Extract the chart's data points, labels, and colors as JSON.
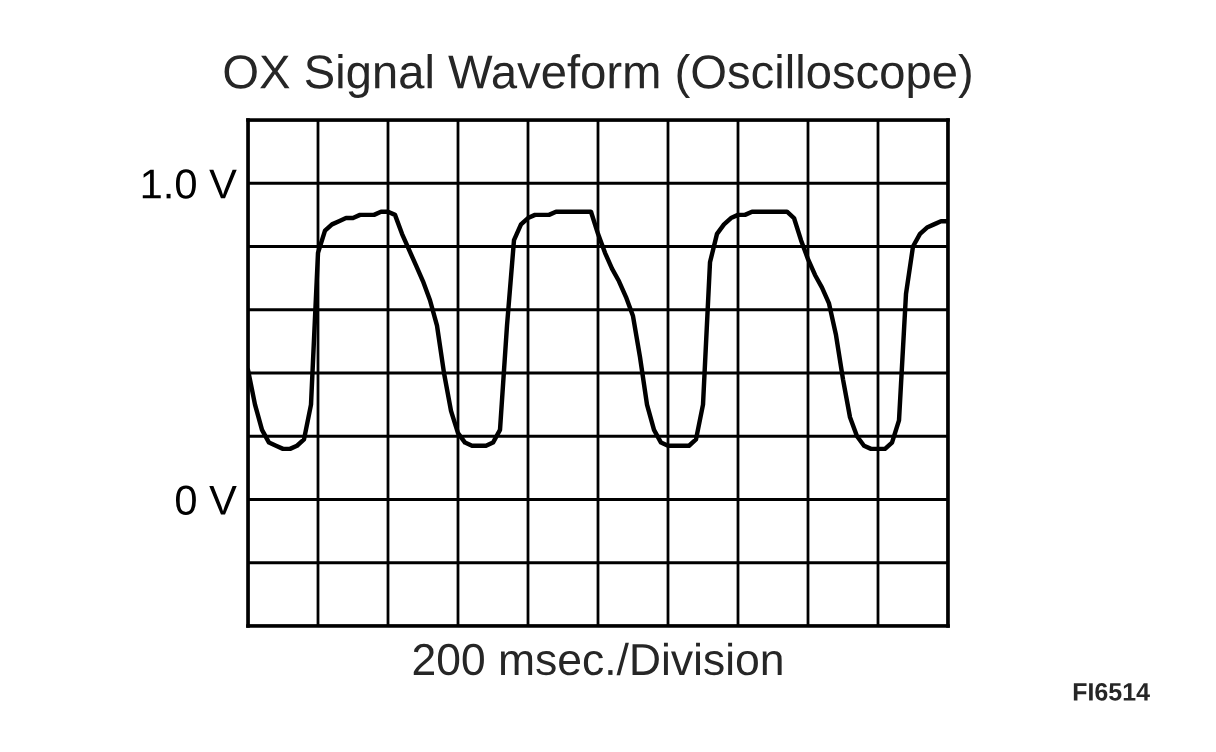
{
  "chart_data": {
    "type": "line",
    "title": "OX Signal Waveform (Oscilloscope)",
    "xlabel": "200 msec./Division",
    "annotations": [
      "FI6514"
    ],
    "categories": [
      null,
      null,
      null,
      null,
      null,
      null,
      null,
      null,
      null,
      null,
      null,
      null,
      null,
      null,
      null,
      null,
      null,
      null,
      null,
      null,
      null,
      null,
      null,
      null,
      null,
      null,
      null,
      null,
      null,
      null,
      null,
      null,
      null,
      null,
      null,
      null,
      null,
      null,
      null,
      null,
      null,
      null,
      null,
      null,
      null,
      null,
      null,
      null,
      null,
      null,
      null,
      null,
      null,
      null,
      null,
      null,
      null,
      null,
      null,
      null,
      null,
      null,
      null,
      null,
      null,
      null,
      null,
      null,
      null,
      null,
      null,
      null,
      null,
      null,
      null,
      null,
      null,
      null,
      null,
      null,
      null,
      null,
      null,
      null,
      null,
      null,
      null,
      null,
      null,
      null,
      null,
      null,
      null,
      null,
      null,
      null,
      null,
      null,
      null,
      null,
      null
    ],
    "series": [
      {
        "color": "#000000",
        "values": [
          0.41,
          0.3,
          0.22,
          0.18,
          0.17,
          0.16,
          0.16,
          0.17,
          0.19,
          0.3,
          0.78,
          0.85,
          0.87,
          0.88,
          0.89,
          0.89,
          0.9,
          0.9,
          0.9,
          0.91,
          0.91,
          0.9,
          0.84,
          0.79,
          0.74,
          0.69,
          0.63,
          0.55,
          0.4,
          0.28,
          0.21,
          0.18,
          0.17,
          0.17,
          0.17,
          0.18,
          0.22,
          0.55,
          0.82,
          0.87,
          0.89,
          0.9,
          0.9,
          0.9,
          0.91,
          0.91,
          0.91,
          0.91,
          0.91,
          0.91,
          0.84,
          0.78,
          0.73,
          0.69,
          0.64,
          0.58,
          0.45,
          0.3,
          0.22,
          0.18,
          0.17,
          0.17,
          0.17,
          0.17,
          0.19,
          0.3,
          0.75,
          0.84,
          0.87,
          0.89,
          0.9,
          0.9,
          0.91,
          0.91,
          0.91,
          0.91,
          0.91,
          0.91,
          0.89,
          0.82,
          0.76,
          0.71,
          0.67,
          0.62,
          0.52,
          0.38,
          0.26,
          0.2,
          0.17,
          0.16,
          0.16,
          0.16,
          0.18,
          0.25,
          0.65,
          0.8,
          0.84,
          0.86,
          0.87,
          0.88,
          0.88
        ]
      }
    ],
    "ylim": [
      -0.4,
      1.2
    ],
    "yticks": [
      {
        "value": -0.4,
        "label": null
      },
      {
        "value": -0.2,
        "label": null
      },
      {
        "value": 0,
        "label": "0 V"
      },
      {
        "value": 0.2,
        "label": null
      },
      {
        "value": 0.4,
        "label": null
      },
      {
        "value": 0.6,
        "label": null
      },
      {
        "value": 0.8,
        "label": null
      },
      {
        "value": 1.0,
        "label": "1.0 V"
      },
      {
        "value": 1.2,
        "label": null
      }
    ],
    "tick_labels": "y",
    "grid": true,
    "legend": false,
    "marker": "none",
    "line_style": "solid"
  }
}
